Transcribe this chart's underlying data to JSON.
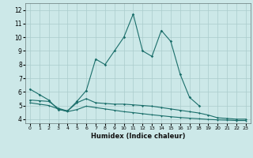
{
  "xlabel": "Humidex (Indice chaleur)",
  "bg_color": "#cce8e8",
  "grid_color": "#aacccc",
  "line_color": "#1a6e6a",
  "xlim": [
    -0.5,
    23.5
  ],
  "ylim": [
    3.7,
    12.5
  ],
  "xticks": [
    0,
    1,
    2,
    3,
    4,
    5,
    6,
    7,
    8,
    9,
    10,
    11,
    12,
    13,
    14,
    15,
    16,
    17,
    18,
    19,
    20,
    21,
    22,
    23
  ],
  "yticks": [
    4,
    5,
    6,
    7,
    8,
    9,
    10,
    11,
    12
  ],
  "line1_x": [
    0,
    1,
    2,
    3,
    4,
    5,
    6,
    7,
    8,
    9,
    10,
    11,
    12,
    13,
    14,
    15,
    16,
    17,
    18
  ],
  "line1_y": [
    6.2,
    5.8,
    5.4,
    4.7,
    4.6,
    5.3,
    6.1,
    8.4,
    8.0,
    9.0,
    10.0,
    11.7,
    9.0,
    8.6,
    10.5,
    9.7,
    7.3,
    5.6,
    5.0
  ],
  "line2_x": [
    0,
    1,
    2,
    3,
    4,
    5,
    6,
    7,
    8,
    9,
    10,
    11,
    12,
    13,
    14,
    15,
    16,
    17,
    18,
    19,
    20,
    21,
    22,
    23
  ],
  "line2_y": [
    5.4,
    5.35,
    5.3,
    4.8,
    4.6,
    5.2,
    5.5,
    5.2,
    5.15,
    5.1,
    5.1,
    5.05,
    5.0,
    4.95,
    4.85,
    4.75,
    4.65,
    4.55,
    4.45,
    4.3,
    4.1,
    4.05,
    4.0,
    4.0
  ],
  "line3_x": [
    0,
    1,
    2,
    3,
    4,
    5,
    6,
    7,
    8,
    9,
    10,
    11,
    12,
    13,
    14,
    15,
    16,
    17,
    18,
    19,
    20,
    21,
    22,
    23
  ],
  "line3_y": [
    5.2,
    5.1,
    5.0,
    4.75,
    4.55,
    4.7,
    4.95,
    4.85,
    4.75,
    4.65,
    4.55,
    4.48,
    4.4,
    4.32,
    4.25,
    4.18,
    4.12,
    4.07,
    4.03,
    3.98,
    3.95,
    3.93,
    3.9,
    3.9
  ]
}
